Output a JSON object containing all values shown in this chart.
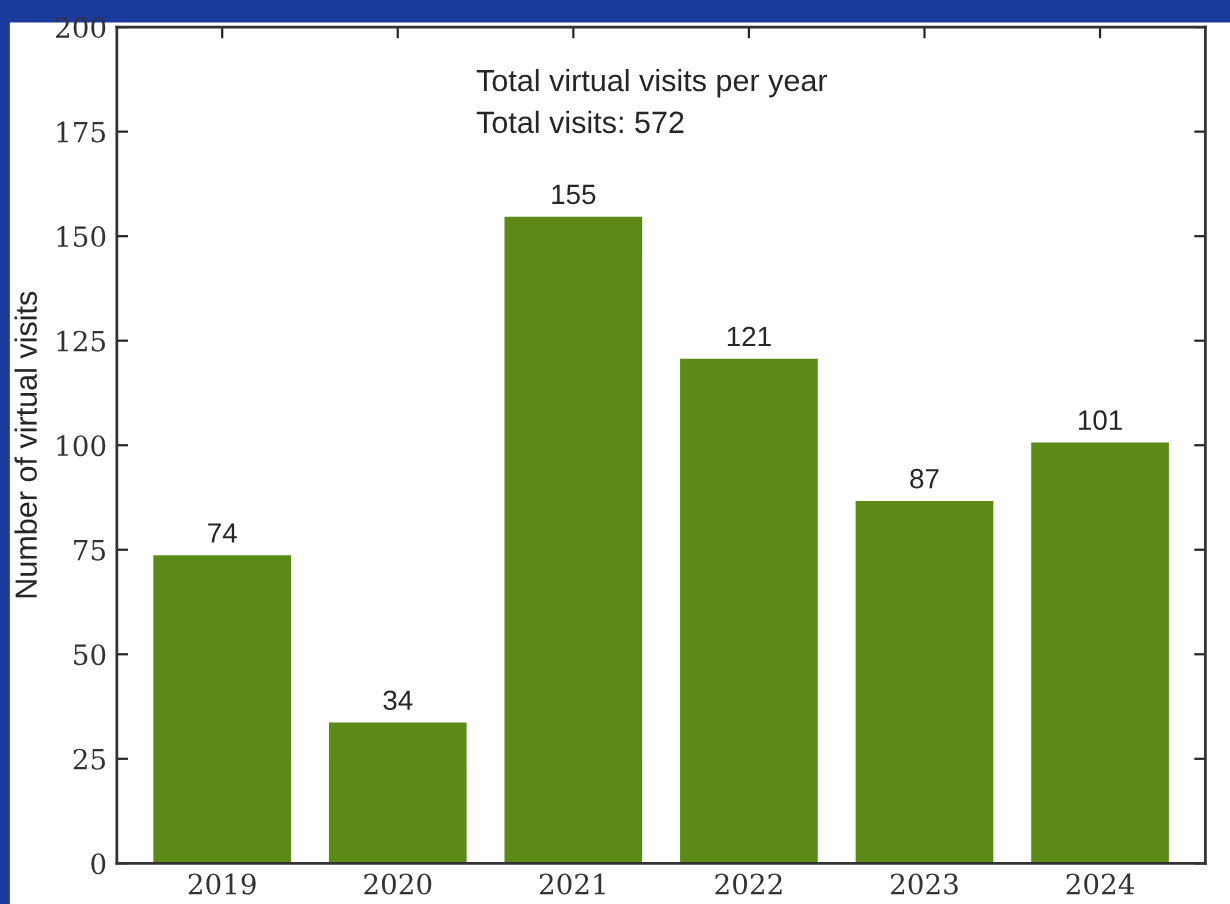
{
  "chart_data": {
    "type": "bar",
    "ylabel": "Number of virtual visits",
    "categories": [
      "2019",
      "2020",
      "2021",
      "2022",
      "2023",
      "2024"
    ],
    "values": [
      74,
      34,
      155,
      121,
      87,
      101
    ],
    "color": "#5b8a17",
    "ylim": [
      0,
      200
    ],
    "yticks": [
      0,
      25,
      50,
      75,
      100,
      125,
      150,
      175,
      200
    ],
    "data_labels": true,
    "grid": false,
    "legend": false,
    "annotations": [
      "Total virtual visits per year",
      "Total visits: 572"
    ]
  }
}
